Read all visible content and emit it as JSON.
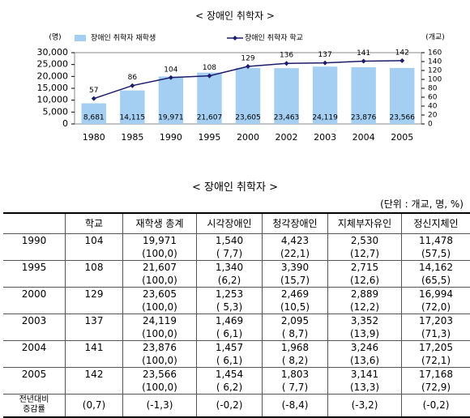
{
  "chart_data": {
    "type": "bar",
    "title": "< 장애인 취학자 >",
    "y_label": "(명)",
    "y2_label": "(개교)",
    "categories": [
      "1980",
      "1985",
      "1990",
      "1995",
      "2000",
      "2002",
      "2003",
      "2004",
      "2005"
    ],
    "series": [
      {
        "name": "장애인 취학자 재학생",
        "type": "bar",
        "color": "#a4cff2",
        "values": [
          8681,
          14115,
          19971,
          21607,
          23605,
          23463,
          24119,
          23876,
          23566
        ],
        "value_labels": [
          "8,681",
          "14,115",
          "19,971",
          "21,607",
          "23,605",
          "23,463",
          "24,119",
          "23,876",
          "23,566"
        ]
      },
      {
        "name": "장애인 취학자 학교",
        "type": "line",
        "axis": "y2",
        "color": "#1c1c6b",
        "values": [
          57,
          86,
          104,
          108,
          129,
          136,
          137,
          141,
          142
        ]
      }
    ],
    "ylim": [
      0,
      30000
    ],
    "yticks": [
      0,
      {
        "value": 5000,
        "label": "5,000"
      },
      {
        "value": 10000,
        "label": "10,000"
      },
      {
        "value": 15000,
        "label": "15,000"
      },
      {
        "value": 20000,
        "label": "20,000"
      },
      {
        "value": 25000,
        "label": "25,000"
      },
      {
        "value": 30000,
        "label": "30,000"
      }
    ],
    "y2lim": [
      0,
      160
    ],
    "y2ticks": [
      0,
      20,
      40,
      60,
      80,
      100,
      120,
      140,
      160
    ]
  },
  "table": {
    "title": "< 장애인 취학자 >",
    "unit": "(단위 : 개교, 명, %)",
    "header": [
      "학교",
      "재학생 총계",
      "시각장애인",
      "청각장애인",
      "지체부자유인",
      "정신지체인"
    ],
    "rows": [
      {
        "year": "1990",
        "school": "104",
        "counts": [
          "19,971",
          "1,540",
          "4,423",
          "2,530",
          "11,478"
        ],
        "shares": [
          "(100,0)",
          "( 7,7)",
          "(22,1)",
          "(12,7)",
          "(57,5)"
        ]
      },
      {
        "year": "1995",
        "school": "108",
        "counts": [
          "21,607",
          "1,340",
          "3,390",
          "2,715",
          "14,162"
        ],
        "shares": [
          "(100,0)",
          "(6,2)",
          "(15,7)",
          "(12,6)",
          "(65,5)"
        ]
      },
      {
        "year": "2000",
        "school": "129",
        "counts": [
          "23,605",
          "1,253",
          "2,469",
          "2,889",
          "16,994"
        ],
        "shares": [
          "(100,0)",
          "( 5,3)",
          "(10,5)",
          "(12,2)",
          "(72,0)"
        ]
      },
      {
        "year": "2003",
        "school": "137",
        "counts": [
          "24,119",
          "1,469",
          "2,095",
          "3,352",
          "17,203"
        ],
        "shares": [
          "(100,0)",
          "( 6,1)",
          "( 8,7)",
          "(13,9)",
          "(71,3)"
        ]
      },
      {
        "year": "2004",
        "school": "141",
        "counts": [
          "23,876",
          "1,457",
          "1,968",
          "3,246",
          "17,205"
        ],
        "shares": [
          "(100,0)",
          "( 6,1)",
          "( 8,2)",
          "(13,6)",
          "(72,1)"
        ]
      },
      {
        "year": "2005",
        "school": "142",
        "counts": [
          "23,566",
          "1,454",
          "1,803",
          "3,141",
          "17,168"
        ],
        "shares": [
          "(100,0)",
          "( 6,2)",
          "( 7,7)",
          "(13,3)",
          "(72,9)"
        ]
      }
    ],
    "change": {
      "label": [
        "전년대비",
        "증감률"
      ],
      "values": [
        "(0,7)",
        "(-1,3)",
        "(-0,2)",
        "(-8,4)",
        "(-3,2)",
        "(-0,2)"
      ]
    }
  }
}
